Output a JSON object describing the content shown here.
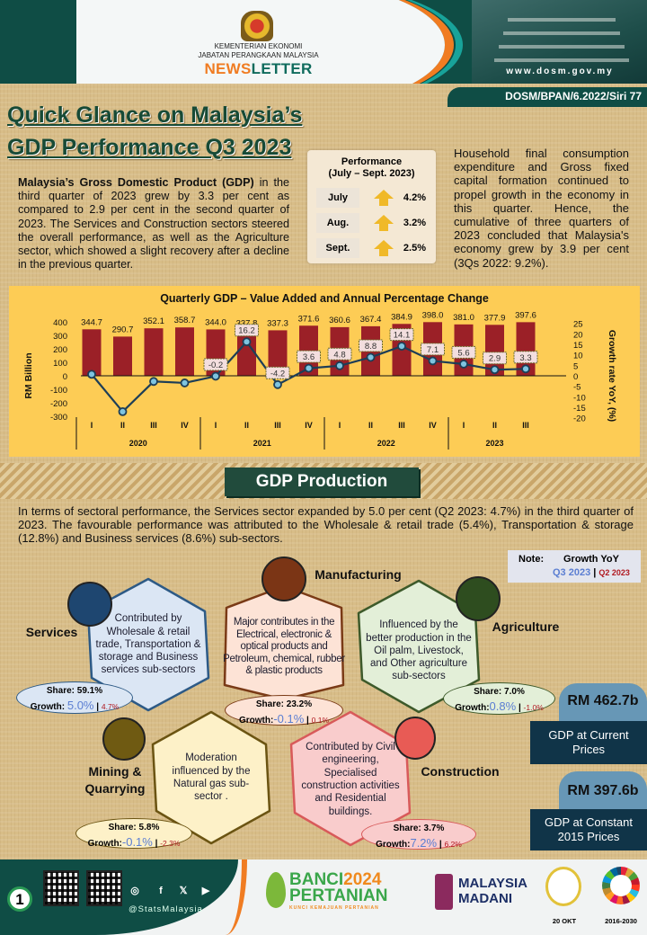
{
  "header": {
    "ministry": "KEMENTERIAN EKONOMI",
    "department": "JABATAN PERANGKAAN MALAYSIA",
    "newsletter_a": "NEWS",
    "newsletter_b": "LETTER",
    "website": "www.dosm.gov.my",
    "series_code": "DOSM/BPAN/6.2022/Siri 77"
  },
  "title": {
    "line1": "Quick Glance on Malaysia’s",
    "line2": "GDP Performance Q3 2023"
  },
  "intro": {
    "bold": "Malaysia’s Gross Domestic Product (GDP)",
    "text": " in the third quarter of 2023 grew by 3.3 per cent as compared to 2.9 per cent in the second quarter of 2023. The Services and Construction sectors steered the overall performance, as well as the Agriculture sector, which showed a slight recovery after a decline in the previous quarter."
  },
  "performance": {
    "title": "Performance",
    "period": "(July – Sept. 2023)",
    "rows": [
      {
        "month": "July",
        "value": "4.2%"
      },
      {
        "month": "Aug.",
        "value": "3.2%"
      },
      {
        "month": "Sept.",
        "value": "2.5%"
      }
    ],
    "arrow_color": "#f0b928"
  },
  "summary": "Household final consumption expenditure and Gross fixed capital formation continued to propel growth in the economy in this quarter. Hence, the cumulative of three quarters of 2023 concluded that Malaysia's economy grew by 3.9 per cent (3Qs 2022: 9.2%).",
  "chart_data": {
    "type": "bar+line",
    "title": "Quarterly GDP – Value Added and Annual Percentage Change",
    "ylabel": "RM Billion",
    "y2label": "Growth rate YoY, (%)",
    "ylim": [
      -300,
      400
    ],
    "y2lim": [
      -20,
      25
    ],
    "yticks": [
      "400",
      "300",
      "200",
      "100",
      "0",
      "-100",
      "-200",
      "-300"
    ],
    "y2ticks": [
      "25",
      "20",
      "15",
      "10",
      "5",
      "0",
      "-5",
      "-10",
      "-15",
      "-20"
    ],
    "categories": [
      "I",
      "II",
      "III",
      "IV",
      "I",
      "II",
      "III",
      "IV",
      "I",
      "II",
      "III",
      "IV",
      "I",
      "II",
      "III"
    ],
    "years": [
      {
        "label": "2020",
        "count": 4
      },
      {
        "label": "2021",
        "count": 4
      },
      {
        "label": "2022",
        "count": 4
      },
      {
        "label": "2023",
        "count": 3
      }
    ],
    "bars": {
      "values": [
        344.7,
        290.7,
        352.1,
        358.7,
        344.0,
        337.8,
        337.3,
        371.6,
        360.6,
        367.4,
        384.9,
        398.0,
        381.0,
        377.9,
        397.6
      ],
      "labels": [
        "344.7",
        "290.7",
        "352.1",
        "358.7",
        "344.0",
        "337.8",
        "337.3",
        "371.6",
        "360.6",
        "367.4",
        "384.9",
        "398.0",
        "381.0",
        "377.9",
        "397.6"
      ],
      "color": "#9b2027"
    },
    "growth": {
      "values": [
        0.7,
        -17.1,
        -2.7,
        -3.4,
        -0.2,
        16.2,
        -4.2,
        3.6,
        4.8,
        8.8,
        14.1,
        7.1,
        5.6,
        2.9,
        3.3
      ],
      "labels": [
        "",
        "",
        "",
        "",
        "-0.2",
        "16.2",
        "-4.2",
        "3.6",
        "4.8",
        "8.8",
        "14.1",
        "7.1",
        "5.6",
        "2.9",
        "3.3"
      ],
      "color": "#1d3e57",
      "marker_color": "#7fc4e0"
    },
    "grid": false
  },
  "production": {
    "heading": "GDP Production",
    "text": "In terms of sectoral performance, the Services sector expanded by 5.0 per cent (Q2 2023: 4.7%) in the third quarter of 2023. The favourable performance was attributed to the Wholesale & retail trade (5.4%), Transportation & storage (12.8%) and Business services (8.6%) sub-sectors."
  },
  "note": {
    "label": "Note:",
    "title": "Growth YoY",
    "q3": "Q3 2023",
    "sep": "|",
    "q2": "Q2 2023"
  },
  "sectors": {
    "services": {
      "name": "Services",
      "desc": "Contributed by Wholesale & retail trade, Transportation & storage and Business services sub-sectors",
      "share": "Share: 59.1%",
      "growth_label": "Growth:",
      "growth": "5.0%",
      "prev": "4.7%"
    },
    "manufacturing": {
      "name": "Manufacturing",
      "desc": "Major contributes in the Electrical, electronic & optical products and Petroleum, chemical, rubber & plastic products",
      "share": "Share: 23.2%",
      "growth_label": "Growth:",
      "growth": "-0.1%",
      "prev": "0.1%"
    },
    "agriculture": {
      "name": "Agriculture",
      "desc": "Influenced by the better production in the Oil palm, Livestock, and Other agriculture sub-sectors",
      "share": "Share: 7.0%",
      "growth_label": "Growth:",
      "growth": "0.8%",
      "prev": "-1.0%"
    },
    "mining": {
      "name": "Mining & Quarrying",
      "desc": "Moderation influenced by the Natural gas sub-sector .",
      "share": "Share: 5.8%",
      "growth_label": "Growth:",
      "growth": "-0.1%",
      "prev": "-2.3%"
    },
    "construction": {
      "name": "Construction",
      "desc": "Contributed by Civil engineering, Specialised construction activities and Residential buildings.",
      "share": "Share: 3.7%",
      "growth_label": "Growth:",
      "growth": "7.2%",
      "prev": "6.2%"
    }
  },
  "gdp_values": {
    "current": {
      "value": "RM 462.7b",
      "label": "GDP at Current Prices"
    },
    "constant": {
      "value": "RM 397.6b",
      "label": "GDP at Constant 2015 Prices"
    }
  },
  "footer": {
    "page": "1",
    "handle": "@StatsMalaysia",
    "banci_a": "BANCI",
    "banci_year": "2024",
    "banci_b": "PERTANIAN",
    "banci_tag": "KUNCI KEMAJUAN PERTANIAN",
    "madani_a": "MALAYSIA",
    "madani_b": "MADANI",
    "date_logo": "20 OKT",
    "sdg_years": "2016-2030"
  }
}
